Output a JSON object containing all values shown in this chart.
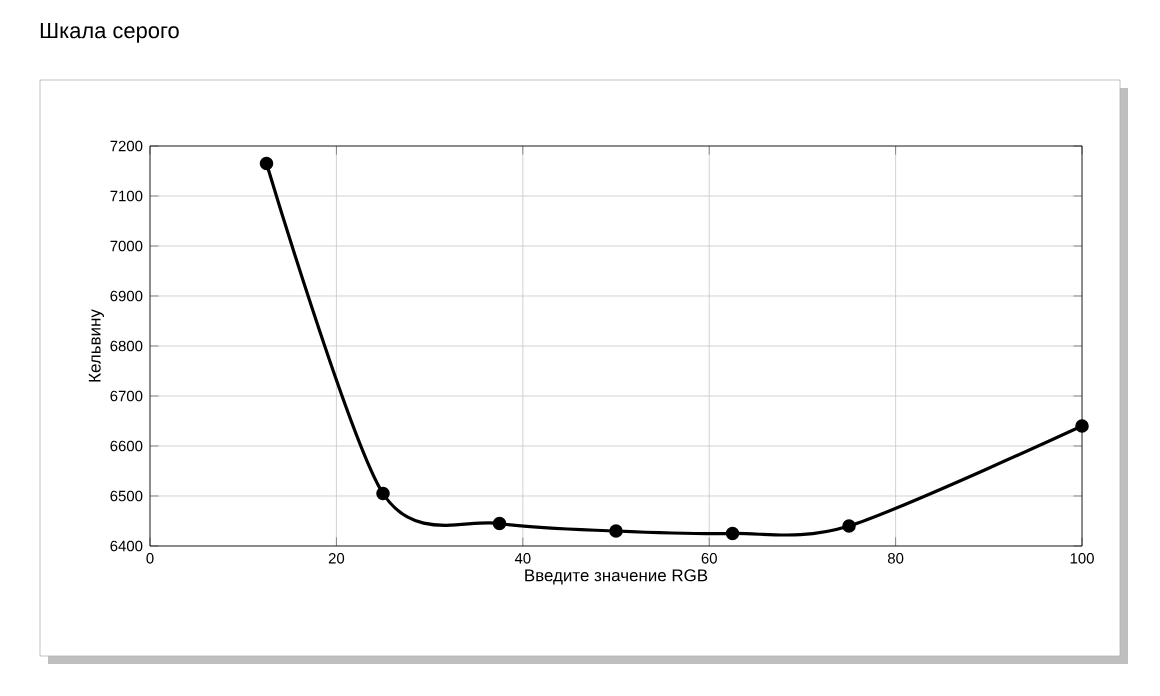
{
  "chart_data": {
    "type": "line",
    "title": "Шкала серого",
    "xlabel": "Введите значение RGB",
    "ylabel": "Кельвину",
    "x": [
      12.5,
      25,
      37.5,
      50,
      62.5,
      75,
      100
    ],
    "series": [
      {
        "color": "#000000",
        "values": [
          7165,
          6505,
          6445,
          6430,
          6425,
          6440,
          6640
        ]
      }
    ],
    "xlim": [
      0,
      100
    ],
    "xticks": [
      0,
      20,
      40,
      60,
      80,
      100
    ],
    "ylim": [
      6400,
      7200
    ],
    "yticks": [
      6400,
      6500,
      6600,
      6700,
      6800,
      6900,
      7000,
      7100,
      7200
    ],
    "grid": true,
    "marker": "circle",
    "line_style": "solid"
  }
}
